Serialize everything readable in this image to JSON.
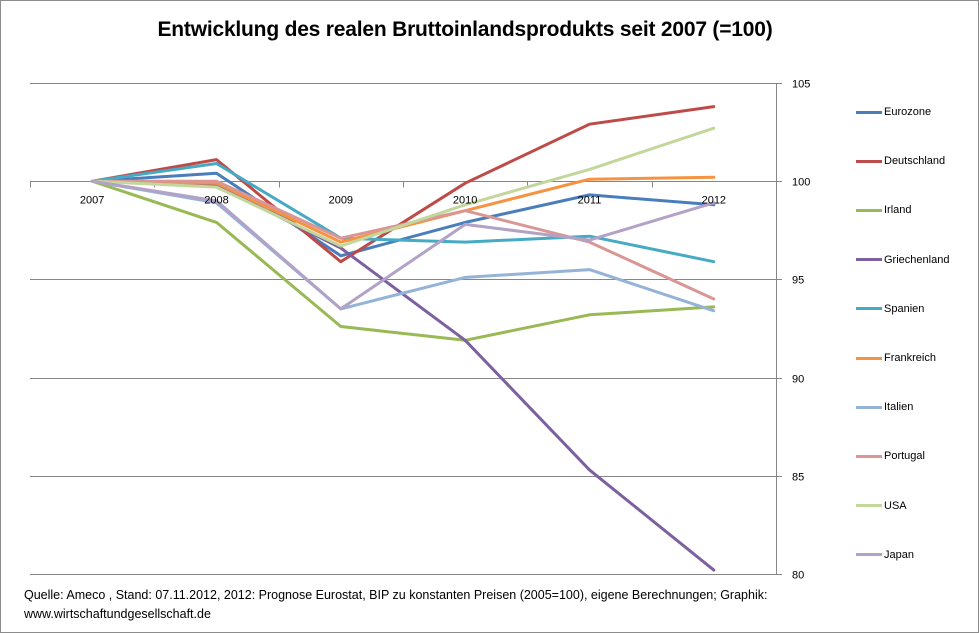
{
  "chart_data": {
    "type": "line",
    "title": "Entwicklung des realen Bruttoinlandsprodukts seit 2007 (=100)",
    "xlabel": "",
    "ylabel": "",
    "categories": [
      "2007",
      "2008",
      "2009",
      "2010",
      "2011",
      "2012"
    ],
    "ylim": [
      80,
      105
    ],
    "yticks": [
      "105",
      "100",
      "95",
      "90",
      "85",
      "80"
    ],
    "ytick_values": [
      105,
      100,
      95,
      90,
      85,
      80
    ],
    "y_axis_position": "right",
    "x_axis_crosses_at": 100,
    "grid": true,
    "legend_position": "right",
    "series": [
      {
        "name": "Eurozone",
        "color": "#4a7ebb",
        "values": [
          100,
          100.4,
          96.2,
          97.9,
          99.3,
          98.8
        ]
      },
      {
        "name": "Deutschland",
        "color": "#be4b48",
        "values": [
          100,
          101.1,
          95.9,
          99.9,
          102.9,
          103.8
        ]
      },
      {
        "name": "Irland",
        "color": "#98b954",
        "values": [
          100,
          97.9,
          92.6,
          91.9,
          93.2,
          93.6
        ]
      },
      {
        "name": "Griechenland",
        "color": "#7d60a0",
        "values": [
          100,
          99.8,
          96.6,
          91.9,
          85.3,
          80.2
        ]
      },
      {
        "name": "Spanien",
        "color": "#46aac5",
        "values": [
          100,
          100.9,
          97.1,
          96.9,
          97.2,
          95.9
        ]
      },
      {
        "name": "Frankreich",
        "color": "#f69240",
        "values": [
          100,
          99.9,
          96.9,
          98.5,
          100.1,
          100.2
        ]
      },
      {
        "name": "Italien",
        "color": "#95b3d7",
        "values": [
          100,
          98.9,
          93.5,
          95.1,
          95.5,
          93.4
        ]
      },
      {
        "name": "Portugal",
        "color": "#d99694",
        "values": [
          100,
          100.0,
          97.1,
          98.5,
          96.9,
          94.0
        ]
      },
      {
        "name": "USA",
        "color": "#c3d69b",
        "values": [
          100,
          99.7,
          96.7,
          98.8,
          100.6,
          102.7
        ]
      },
      {
        "name": "Japan",
        "color": "#b2a2c7",
        "values": [
          100,
          99.0,
          93.5,
          97.8,
          97.0,
          98.9
        ]
      }
    ]
  },
  "footer": {
    "line1": "Quelle: Ameco , Stand: 07.11.2012,  2012:  Prognose Eurostat, BIP zu konstanten Preisen (2005=100), eigene Berechnungen; Graphik:",
    "line2": "www.wirtschaftundgesellschaft.de"
  }
}
